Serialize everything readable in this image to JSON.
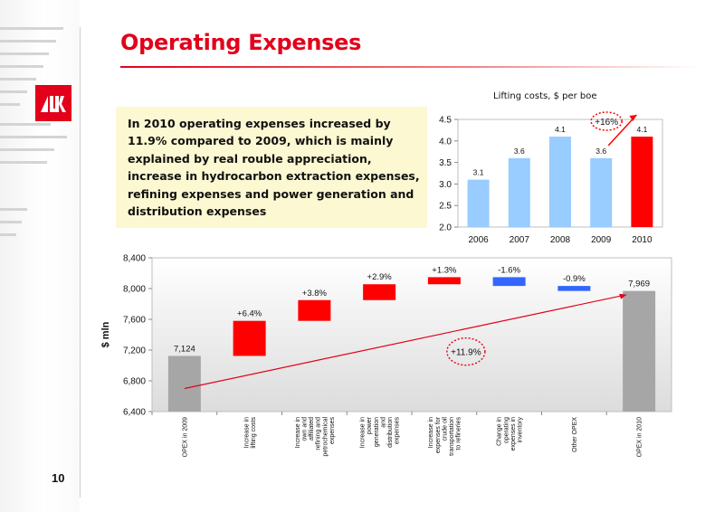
{
  "slide": {
    "title": "Operating Expenses",
    "page_number": "10",
    "summary": "In 2010 operating expenses increased by 11.9% compared to 2009, which is mainly explained by real rouble appreciation, increase in hydrocarbon extraction expenses, refining expenses and power generation and distribution expenses",
    "logo": "lukoil-logo",
    "colors": {
      "brand_red": "#e2001a",
      "bar_blue": "#99ccff",
      "neg_blue": "#3366ff",
      "total_gray": "#a6a6a6",
      "summary_bg": "#fcf8d2"
    }
  },
  "chart_data": [
    {
      "type": "bar",
      "title": "Lifting costs, $ per boe",
      "categories": [
        "2006",
        "2007",
        "2008",
        "2009",
        "2010"
      ],
      "values": [
        3.1,
        3.6,
        4.1,
        3.6,
        4.1
      ],
      "value_labels": [
        "3.1",
        "3.6",
        "4.1",
        "3.6",
        "4.1"
      ],
      "highlight": "2010",
      "ylim": [
        2.0,
        4.5
      ],
      "yticks": [
        "2.0",
        "2.5",
        "3.0",
        "3.5",
        "4.0",
        "4.5"
      ],
      "annotation": "+16%"
    },
    {
      "type": "waterfall",
      "ylabel": "$ mln",
      "ylim": [
        6400,
        8400
      ],
      "yticks": [
        "6,400",
        "6,800",
        "7,200",
        "7,600",
        "8,000",
        "8,400"
      ],
      "steps": [
        {
          "label": "OPEX in 2009",
          "kind": "total",
          "start": 0,
          "end": 7124,
          "value_label": "7,124"
        },
        {
          "label": "Increase in lifting costs",
          "kind": "increase",
          "start": 7124,
          "end": 7580,
          "value_label": "+6.4%"
        },
        {
          "label": "Increase in own and affiliated refining and petrochemical expenses",
          "kind": "increase",
          "start": 7580,
          "end": 7850,
          "value_label": "+3.8%"
        },
        {
          "label": "Increase in power generation and distribution expenses",
          "kind": "increase",
          "start": 7850,
          "end": 8056,
          "value_label": "+2.9%"
        },
        {
          "label": "Increase in expenses for crude oil transportation to refineries",
          "kind": "increase",
          "start": 8056,
          "end": 8148,
          "value_label": "+1.3%"
        },
        {
          "label": "Change in operating expenses in inventory",
          "kind": "decrease",
          "start": 8148,
          "end": 8034,
          "value_label": "-1.6%"
        },
        {
          "label": "Other OPEX",
          "kind": "decrease",
          "start": 8034,
          "end": 7969,
          "value_label": "-0.9%"
        },
        {
          "label": "OPEX in 2010",
          "kind": "total",
          "start": 0,
          "end": 7969,
          "value_label": "7,969"
        }
      ],
      "annotation": "+11.9%"
    }
  ]
}
